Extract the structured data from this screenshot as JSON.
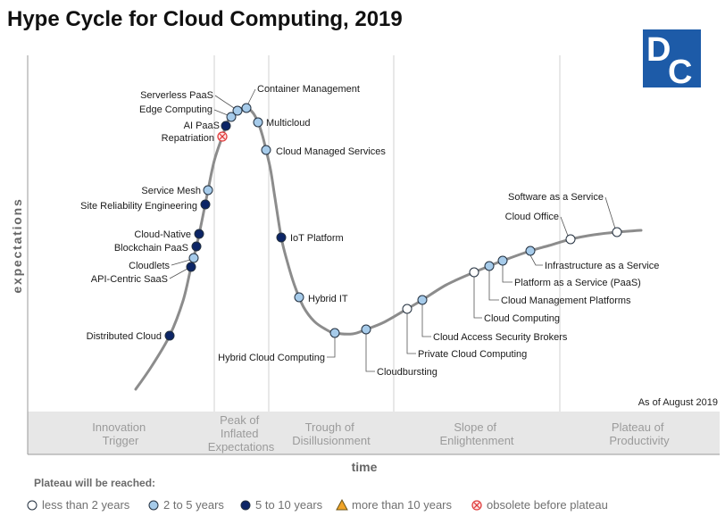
{
  "title": "Hype Cycle for Cloud Computing, 2019",
  "logo": {
    "letters": [
      "D",
      "C"
    ],
    "color": "#1d5ba8"
  },
  "axes": {
    "y_label": "expectations",
    "x_label": "time"
  },
  "as_of": "As of August 2019",
  "phases": [
    {
      "lines": [
        "Innovation",
        "Trigger"
      ]
    },
    {
      "lines": [
        "Peak of",
        "Inflated",
        "Expectations"
      ]
    },
    {
      "lines": [
        "Trough of",
        "Disillusionment"
      ]
    },
    {
      "lines": [
        "Slope of",
        "Enlightenment"
      ]
    },
    {
      "lines": [
        "Plateau of",
        "Productivity"
      ]
    }
  ],
  "technologies": [
    {
      "name": "Distributed Cloud",
      "plateau": 2
    },
    {
      "name": "API-Centric SaaS",
      "plateau": 2
    },
    {
      "name": "Cloudlets",
      "plateau": 1
    },
    {
      "name": "Blockchain PaaS",
      "plateau": 2
    },
    {
      "name": "Cloud-Native",
      "plateau": 2
    },
    {
      "name": "Site Reliability Engineering",
      "plateau": 2
    },
    {
      "name": "Service Mesh",
      "plateau": 1
    },
    {
      "name": "Repatriation",
      "plateau": 4
    },
    {
      "name": "AI PaaS",
      "plateau": 2
    },
    {
      "name": "Edge Computing",
      "plateau": 1
    },
    {
      "name": "Serverless PaaS",
      "plateau": 1
    },
    {
      "name": "Container Management",
      "plateau": 1
    },
    {
      "name": "Multicloud",
      "plateau": 1
    },
    {
      "name": "Cloud Managed Services",
      "plateau": 1
    },
    {
      "name": "IoT Platform",
      "plateau": 2
    },
    {
      "name": "Hybrid IT",
      "plateau": 1
    },
    {
      "name": "Hybrid Cloud Computing",
      "plateau": 1
    },
    {
      "name": "Cloudbursting",
      "plateau": 1
    },
    {
      "name": "Private Cloud Computing",
      "plateau": 0
    },
    {
      "name": "Cloud Access Security Brokers",
      "plateau": 1
    },
    {
      "name": "Cloud Computing",
      "plateau": 0
    },
    {
      "name": "Cloud Management Platforms",
      "plateau": 1
    },
    {
      "name": "Platform as a Service (PaaS)",
      "plateau": 1
    },
    {
      "name": "Infrastructure as a Service",
      "plateau": 1
    },
    {
      "name": "Cloud Office",
      "plateau": 0
    },
    {
      "name": "Software as a Service",
      "plateau": 0
    }
  ],
  "legend": {
    "title": "Plateau will be reached:",
    "entries": [
      {
        "label": "less than 2 years",
        "icon": "circle-icon",
        "color": "#ffffff"
      },
      {
        "label": "2 to 5 years",
        "icon": "circle-icon",
        "color": "#a6cbea"
      },
      {
        "label": "5 to 10 years",
        "icon": "circle-icon",
        "color": "#0c2566"
      },
      {
        "label": "more than 10 years",
        "icon": "triangle-icon",
        "color": "#f0a428"
      },
      {
        "label": "obsolete before plateau",
        "icon": "x-circle-icon",
        "color": "#e03c3c"
      }
    ]
  },
  "colors": {
    "curve": "#8c8c8c",
    "band": "#e7e7e7",
    "divider": "#d2d2d2"
  }
}
